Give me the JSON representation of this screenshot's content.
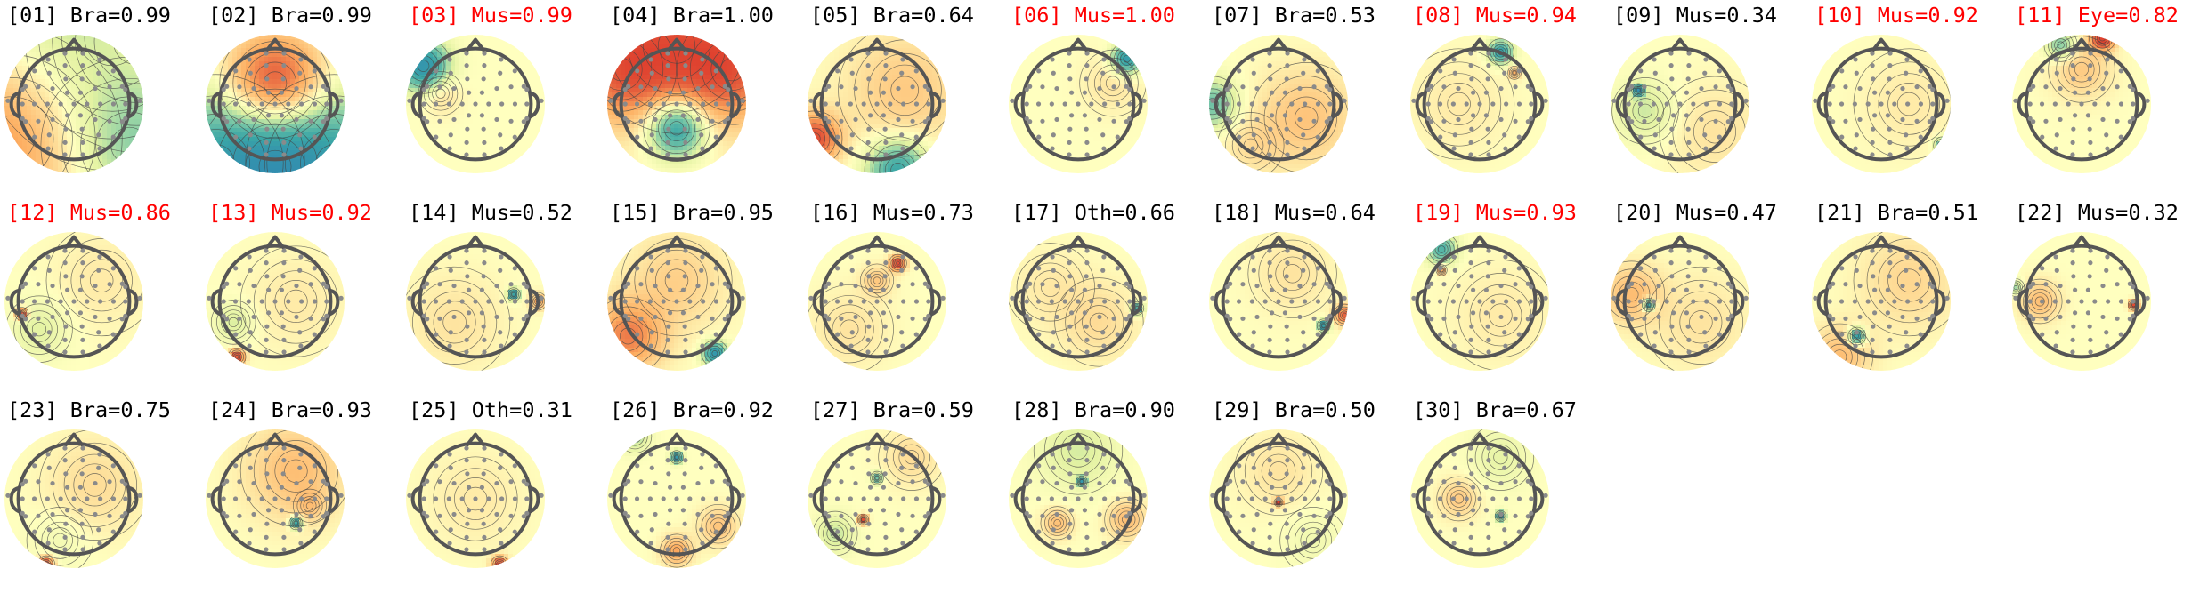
{
  "chart_data": {
    "type": "topomap-grid",
    "title": "",
    "colors": {
      "title_flagged": "#ff0000",
      "title_normal": "#000000",
      "head_outline": "#555555",
      "sensor_dot": "#8a8a8a",
      "contour": "#444444",
      "colormap": [
        "#2c7bb6",
        "#3aa6a6",
        "#86cda6",
        "#e3f2a2",
        "#ffffbf",
        "#fed690",
        "#fdae61",
        "#e45b3b",
        "#d7191c"
      ]
    },
    "components": [
      {
        "index": "01",
        "label": "Bra",
        "score": "0.99",
        "flagged": false,
        "title": "[01] Bra=0.99"
      },
      {
        "index": "02",
        "label": "Bra",
        "score": "0.99",
        "flagged": false,
        "title": "[02] Bra=0.99"
      },
      {
        "index": "03",
        "label": "Mus",
        "score": "0.99",
        "flagged": true,
        "title": "[03] Mus=0.99"
      },
      {
        "index": "04",
        "label": "Bra",
        "score": "1.00",
        "flagged": false,
        "title": "[04] Bra=1.00"
      },
      {
        "index": "05",
        "label": "Bra",
        "score": "0.64",
        "flagged": false,
        "title": "[05] Bra=0.64"
      },
      {
        "index": "06",
        "label": "Mus",
        "score": "1.00",
        "flagged": true,
        "title": "[06] Mus=1.00"
      },
      {
        "index": "07",
        "label": "Bra",
        "score": "0.53",
        "flagged": false,
        "title": "[07] Bra=0.53"
      },
      {
        "index": "08",
        "label": "Mus",
        "score": "0.94",
        "flagged": true,
        "title": "[08] Mus=0.94"
      },
      {
        "index": "09",
        "label": "Mus",
        "score": "0.34",
        "flagged": false,
        "title": "[09] Mus=0.34"
      },
      {
        "index": "10",
        "label": "Mus",
        "score": "0.92",
        "flagged": true,
        "title": "[10] Mus=0.92"
      },
      {
        "index": "11",
        "label": "Eye",
        "score": "0.82",
        "flagged": true,
        "title": "[11] Eye=0.82"
      },
      {
        "index": "12",
        "label": "Mus",
        "score": "0.86",
        "flagged": true,
        "title": "[12] Mus=0.86"
      },
      {
        "index": "13",
        "label": "Mus",
        "score": "0.92",
        "flagged": true,
        "title": "[13] Mus=0.92"
      },
      {
        "index": "14",
        "label": "Mus",
        "score": "0.52",
        "flagged": false,
        "title": "[14] Mus=0.52"
      },
      {
        "index": "15",
        "label": "Bra",
        "score": "0.95",
        "flagged": false,
        "title": "[15] Bra=0.95"
      },
      {
        "index": "16",
        "label": "Mus",
        "score": "0.73",
        "flagged": false,
        "title": "[16] Mus=0.73"
      },
      {
        "index": "17",
        "label": "Oth",
        "score": "0.66",
        "flagged": false,
        "title": "[17] Oth=0.66"
      },
      {
        "index": "18",
        "label": "Mus",
        "score": "0.64",
        "flagged": false,
        "title": "[18] Mus=0.64"
      },
      {
        "index": "19",
        "label": "Mus",
        "score": "0.93",
        "flagged": true,
        "title": "[19] Mus=0.93"
      },
      {
        "index": "20",
        "label": "Mus",
        "score": "0.47",
        "flagged": false,
        "title": "[20] Mus=0.47"
      },
      {
        "index": "21",
        "label": "Bra",
        "score": "0.51",
        "flagged": false,
        "title": "[21] Bra=0.51"
      },
      {
        "index": "22",
        "label": "Mus",
        "score": "0.32",
        "flagged": false,
        "title": "[22] Mus=0.32"
      },
      {
        "index": "23",
        "label": "Bra",
        "score": "0.75",
        "flagged": false,
        "title": "[23] Bra=0.75"
      },
      {
        "index": "24",
        "label": "Bra",
        "score": "0.93",
        "flagged": false,
        "title": "[24] Bra=0.93"
      },
      {
        "index": "25",
        "label": "Oth",
        "score": "0.31",
        "flagged": false,
        "title": "[25] Oth=0.31"
      },
      {
        "index": "26",
        "label": "Bra",
        "score": "0.92",
        "flagged": false,
        "title": "[26] Bra=0.92"
      },
      {
        "index": "27",
        "label": "Bra",
        "score": "0.59",
        "flagged": false,
        "title": "[27] Bra=0.59"
      },
      {
        "index": "28",
        "label": "Bra",
        "score": "0.90",
        "flagged": false,
        "title": "[28] Bra=0.90"
      },
      {
        "index": "29",
        "label": "Bra",
        "score": "0.50",
        "flagged": false,
        "title": "[29] Bra=0.50"
      },
      {
        "index": "30",
        "label": "Bra",
        "score": "0.67",
        "flagged": false,
        "title": "[30] Bra=0.67"
      }
    ]
  }
}
